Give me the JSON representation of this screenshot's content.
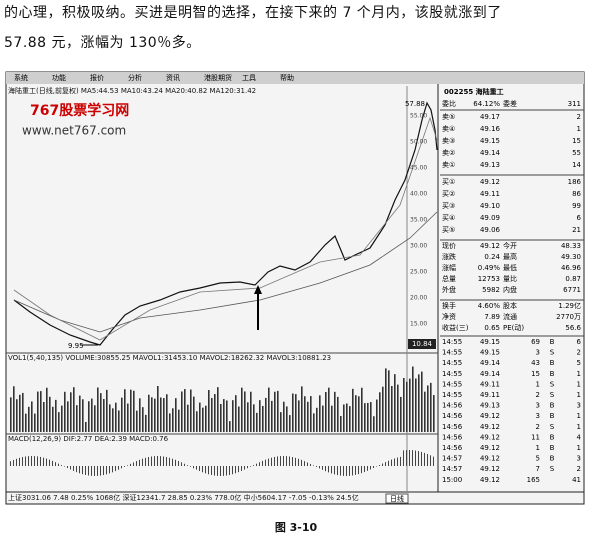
{
  "paragraph": [
    "的心理，积极吸纳。买进是明智的选择，在接下来的 7 个月内，该股就涨到了",
    "57.88 元，涨幅为 130％多。"
  ],
  "screenshot": {
    "menu": [
      "系统",
      "功能",
      "报价",
      "分析",
      "资讯",
      "港股期货",
      "工具",
      "帮助"
    ],
    "chart_header": "海陆重工(日线,前复权)  MA5:44.53  MA10:43.24  MA20:40.82  MA120:31.42",
    "watermark": {
      "title": "767股票学习网",
      "url": "www.net767.com"
    },
    "price_labels": {
      "high": "57.88",
      "low": "9.95",
      "last": "10.84"
    },
    "y_axis": [
      "55.00",
      "50.00",
      "45.00",
      "40.00",
      "35.00",
      "30.00",
      "25.00",
      "20.00",
      "15.00"
    ],
    "volume_header": "VOL1(5,40,135)  VOLUME:30855.25  MAVOL1:31453.10  MAVOL2:18262.32  MAVOL3:10881.23",
    "macd_header": "MACD(12,26,9)  DIF:2.77  DEA:2.39  MACD:0.76",
    "quote": {
      "code": "002255 海陆重工",
      "ratio_row": [
        "委比",
        "64.12%",
        "委差",
        "311"
      ],
      "asks": [
        [
          "卖⑤",
          "49.17",
          "2"
        ],
        [
          "卖④",
          "49.16",
          "1"
        ],
        [
          "卖③",
          "49.15",
          "15"
        ],
        [
          "卖②",
          "49.14",
          "55"
        ],
        [
          "卖①",
          "49.13",
          "14"
        ]
      ],
      "bids": [
        [
          "买①",
          "49.12",
          "186"
        ],
        [
          "买②",
          "49.11",
          "86"
        ],
        [
          "买③",
          "49.10",
          "99"
        ],
        [
          "买④",
          "49.09",
          "6"
        ],
        [
          "买⑤",
          "49.06",
          "21"
        ]
      ],
      "stats": [
        [
          "现价",
          "49.12",
          "今开",
          "48.33"
        ],
        [
          "涨跌",
          "0.24",
          "最高",
          "49.30"
        ],
        [
          "涨幅",
          "0.49%",
          "最低",
          "46.96"
        ],
        [
          "总量",
          "12753",
          "量比",
          "0.87"
        ],
        [
          "外盘",
          "5982",
          "内盘",
          "6771"
        ]
      ],
      "stats2": [
        [
          "换手",
          "4.60%",
          "股本",
          "1.29亿"
        ],
        [
          "净资",
          "7.89",
          "流通",
          "2770万"
        ],
        [
          "收益(三)",
          "0.65",
          "PE(动)",
          "56.6"
        ]
      ],
      "ticks": [
        [
          "14:55",
          "49.15",
          "69",
          "B",
          "6"
        ],
        [
          "14:55",
          "49.15",
          "3",
          "S",
          "2"
        ],
        [
          "14:55",
          "49.14",
          "43",
          "B",
          "5"
        ],
        [
          "14:55",
          "49.14",
          "15",
          "B",
          "1"
        ],
        [
          "14:55",
          "49.11",
          "1",
          "S",
          "1"
        ],
        [
          "14:55",
          "49.11",
          "2",
          "S",
          "1"
        ],
        [
          "14:56",
          "49.13",
          "3",
          "B",
          "3"
        ],
        [
          "14:56",
          "49.12",
          "3",
          "B",
          "1"
        ],
        [
          "14:56",
          "49.12",
          "2",
          "S",
          "1"
        ],
        [
          "14:56",
          "49.12",
          "11",
          "B",
          "4"
        ],
        [
          "14:56",
          "49.12",
          "1",
          "B",
          "1"
        ],
        [
          "14:57",
          "49.12",
          "5",
          "B",
          "3"
        ],
        [
          "14:57",
          "49.12",
          "7",
          "S",
          "2"
        ],
        [
          "15:00",
          "49.12",
          "165",
          "41"
        ]
      ]
    },
    "status_bar": "上证3031.06  7.48  0.25%  1068亿   深证12341.7  28.85  0.23%  778.0亿   中小5604.17  -7.05  -0.13%  24.5亿",
    "tab": "日线"
  },
  "caption": "图 3-10"
}
